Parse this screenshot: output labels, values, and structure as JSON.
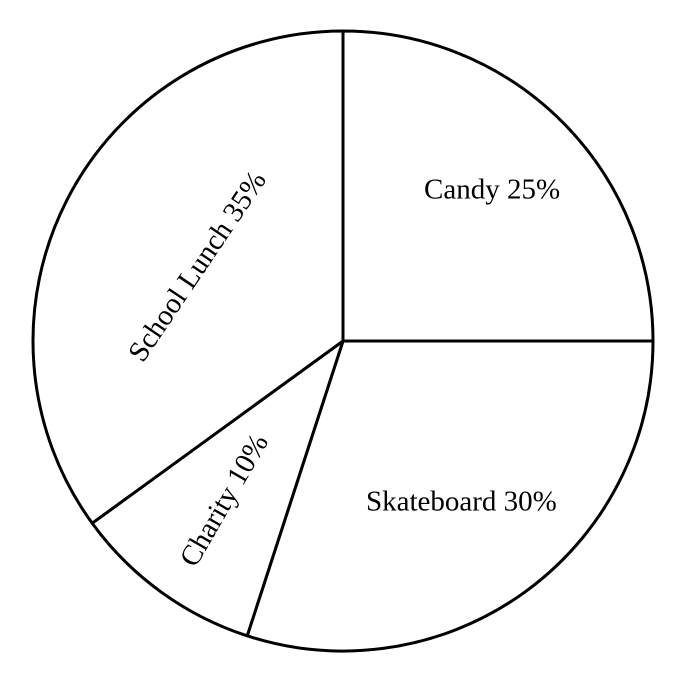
{
  "chart_data": {
    "type": "pie",
    "start_angle": "12 o'clock",
    "direction": "clockwise",
    "slices": [
      {
        "label": "Candy",
        "value": 25,
        "text": "Candy 25%"
      },
      {
        "label": "Skateboard",
        "value": 30,
        "text": "Skateboard 30%"
      },
      {
        "label": "Charity",
        "value": 10,
        "text": "Charity 10%"
      },
      {
        "label": "School Lunch",
        "value": 35,
        "text": "School Lunch 35%"
      }
    ],
    "fill_color": "#ffffff",
    "stroke_color": "#000000",
    "legend": "none"
  }
}
